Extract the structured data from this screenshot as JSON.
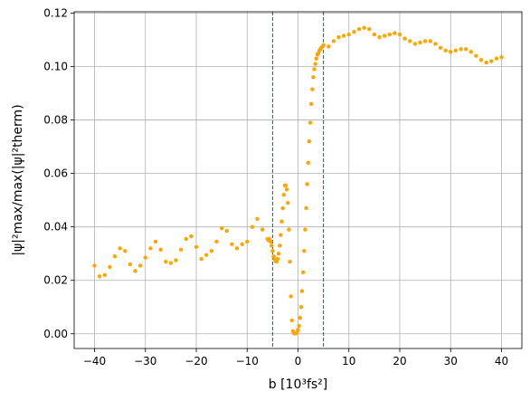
{
  "chart_data": {
    "type": "scatter",
    "title": "",
    "xlabel": "b [10³fs²]",
    "ylabel": "|ψ|²max/max(|ψ|²therm)",
    "xlim": [
      -44,
      44
    ],
    "ylim": [
      -0.0055,
      0.1205
    ],
    "xticks": [
      -40,
      -30,
      -20,
      -10,
      0,
      10,
      20,
      30,
      40
    ],
    "xtick_labels": [
      "−40",
      "−30",
      "−20",
      "−10",
      "0",
      "10",
      "20",
      "30",
      "40"
    ],
    "yticks": [
      0.0,
      0.02,
      0.04,
      0.06,
      0.08,
      0.1,
      0.12
    ],
    "ytick_labels": [
      "0.00",
      "0.02",
      "0.04",
      "0.06",
      "0.08",
      "0.10",
      "0.12"
    ],
    "grid": true,
    "marker_color": "#FFA500",
    "vlines": [
      {
        "x": -5,
        "color": "#008000",
        "style": "dashed"
      },
      {
        "x": 5,
        "color": "#008000",
        "style": "dashed"
      }
    ],
    "series": [
      {
        "x": [
          -40,
          -39,
          -38,
          -37,
          -36,
          -35,
          -34,
          -33,
          -32,
          -31,
          -30,
          -29,
          -28,
          -27,
          -26,
          -25,
          -24,
          -23,
          -22,
          -21,
          -20,
          -19,
          -18,
          -17,
          -16,
          -15,
          -14,
          -13,
          -12,
          -11,
          -10,
          -9,
          -8,
          -7,
          -6,
          -5.8,
          -5.6,
          -5.4,
          -5.2,
          -5.0,
          -4.8,
          -4.6,
          -4.4,
          -4.2,
          -4.0,
          -3.8,
          -3.6,
          -3.4,
          -3.2,
          -3.0,
          -2.8,
          -2.6,
          -2.4,
          -2.2,
          -2.0,
          -1.8,
          -1.6,
          -1.4,
          -1.2,
          -1.0,
          -0.8,
          -0.6,
          -0.4,
          -0.2,
          0.0,
          0.2,
          0.4,
          0.6,
          0.8,
          1.0,
          1.2,
          1.4,
          1.6,
          1.8,
          2.0,
          2.2,
          2.4,
          2.6,
          2.8,
          3.0,
          3.2,
          3.4,
          3.6,
          3.8,
          4.0,
          4.2,
          4.4,
          4.6,
          4.8,
          5.0,
          6,
          7,
          8,
          9,
          10,
          11,
          12,
          13,
          14,
          15,
          16,
          17,
          18,
          19,
          20,
          21,
          22,
          23,
          24,
          25,
          26,
          27,
          28,
          29,
          30,
          31,
          32,
          33,
          34,
          35,
          36,
          37,
          38,
          39,
          40
        ],
        "y": [
          0.0255,
          0.0215,
          0.022,
          0.025,
          0.029,
          0.032,
          0.031,
          0.026,
          0.0235,
          0.0255,
          0.0285,
          0.032,
          0.0345,
          0.0315,
          0.027,
          0.0265,
          0.0275,
          0.0315,
          0.0355,
          0.0365,
          0.0325,
          0.028,
          0.0295,
          0.031,
          0.0345,
          0.0395,
          0.0385,
          0.0335,
          0.032,
          0.0335,
          0.0345,
          0.04,
          0.043,
          0.039,
          0.0355,
          0.035,
          0.0355,
          0.0345,
          0.033,
          0.031,
          0.029,
          0.028,
          0.0272,
          0.027,
          0.028,
          0.03,
          0.033,
          0.037,
          0.042,
          0.047,
          0.052,
          0.0555,
          0.0555,
          0.054,
          0.049,
          0.039,
          0.027,
          0.014,
          0.005,
          0.001,
          0.0002,
          0.0001,
          0.0002,
          0.0005,
          0.0015,
          0.003,
          0.006,
          0.01,
          0.016,
          0.023,
          0.031,
          0.039,
          0.047,
          0.056,
          0.064,
          0.072,
          0.079,
          0.086,
          0.0915,
          0.096,
          0.099,
          0.101,
          0.103,
          0.1045,
          0.105,
          0.106,
          0.1065,
          0.107,
          0.1075,
          0.108,
          0.1075,
          0.1095,
          0.111,
          0.1115,
          0.112,
          0.113,
          0.114,
          0.1145,
          0.114,
          0.112,
          0.111,
          0.1115,
          0.112,
          0.1125,
          0.112,
          0.1105,
          0.1095,
          0.1085,
          0.109,
          0.1095,
          0.1095,
          0.1085,
          0.107,
          0.106,
          0.1055,
          0.106,
          0.1065,
          0.1065,
          0.1055,
          0.104,
          0.1025,
          0.1015,
          0.102,
          0.103,
          0.1035
        ]
      }
    ]
  }
}
